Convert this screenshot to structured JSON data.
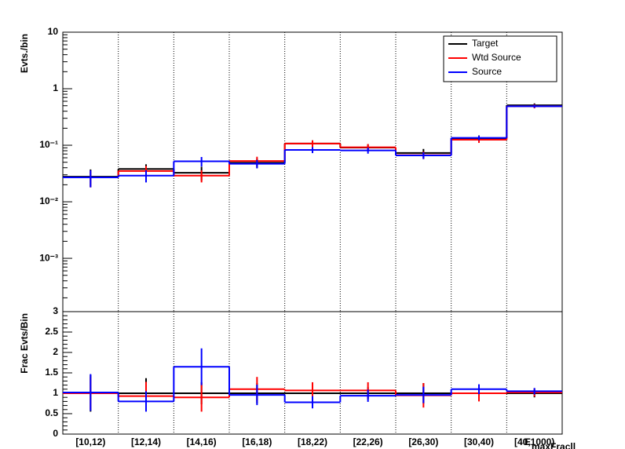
{
  "chart_data": [
    {
      "type": "step",
      "y_label": "Evts./bin",
      "log_y": true,
      "grid_x": true,
      "ylim": [
        0.000114,
        10
      ],
      "yticks": [
        {
          "value": 0.001,
          "label": "10⁻³"
        },
        {
          "value": 0.01,
          "label": "10⁻²"
        },
        {
          "value": 0.1,
          "label": "10⁻¹"
        },
        1,
        10
      ],
      "legend": "top-right",
      "series": [
        {
          "name": "Target",
          "color": "#000000",
          "values": [
            0.0278,
            0.038,
            0.0326,
            0.049,
            0.107,
            0.091,
            0.073,
            0.133,
            0.51
          ],
          "errors": [
            0.0095,
            0.008,
            0.009,
            0.009,
            0.015,
            0.013,
            0.013,
            0.016,
            0.04
          ]
        },
        {
          "name": "Wtd Source",
          "color": "#ff0000",
          "values": [
            0.027,
            0.035,
            0.029,
            0.0526,
            0.107,
            0.092,
            0.067,
            0.125,
            0.49
          ],
          "errors": [
            0.009,
            0.008,
            0.007,
            0.01,
            0.015,
            0.013,
            0.01,
            0.015,
            0.04
          ]
        },
        {
          "name": "Source",
          "color": "#0000ff",
          "values": [
            0.027,
            0.029,
            0.052,
            0.047,
            0.0826,
            0.081,
            0.066,
            0.135,
            0.49
          ],
          "errors": [
            0.009,
            0.007,
            0.01,
            0.008,
            0.01,
            0.01,
            0.009,
            0.012,
            0.03
          ]
        }
      ]
    },
    {
      "type": "step",
      "y_label": "Frac Evts/Bin",
      "log_y": false,
      "grid_x": true,
      "x_label": "E",
      "x_label_sub": "maxFracll",
      "categories": [
        "[10,12)",
        "[12,14)",
        "[14,16)",
        "[16,18)",
        "[18,22)",
        "[22,26)",
        "[26,30)",
        "[30,40)",
        "[40,1000)"
      ],
      "ylim": [
        0,
        3
      ],
      "yticks": [
        0,
        0.5,
        1,
        1.5,
        2,
        2.5,
        3
      ],
      "series": [
        {
          "name": "Target",
          "color": "#000000",
          "values": [
            1,
            1,
            1,
            1,
            1,
            1,
            1,
            1,
            1
          ],
          "errors": [
            0.45,
            0.37,
            0.27,
            0.25,
            0.15,
            0.15,
            0.25,
            0.15,
            0.1
          ]
        },
        {
          "name": "Wtd Source",
          "color": "#ff0000",
          "values": [
            1.0,
            0.93,
            0.9,
            1.1,
            1.07,
            1.07,
            0.95,
            1.0,
            1.02
          ],
          "errors": [
            0.4,
            0.35,
            0.35,
            0.3,
            0.2,
            0.2,
            0.3,
            0.2,
            0.1
          ]
        },
        {
          "name": "Source",
          "color": "#0000ff",
          "values": [
            1.02,
            0.8,
            1.65,
            0.96,
            0.78,
            0.94,
            0.96,
            1.1,
            1.05
          ],
          "errors": [
            0.45,
            0.25,
            0.45,
            0.25,
            0.15,
            0.15,
            0.2,
            0.12,
            0.08
          ]
        }
      ]
    }
  ]
}
